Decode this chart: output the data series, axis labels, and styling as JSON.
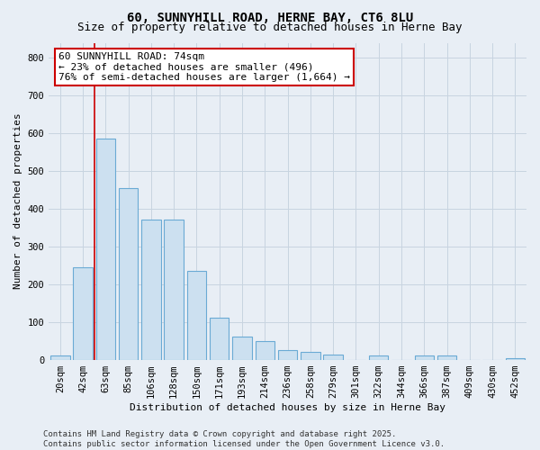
{
  "title": "60, SUNNYHILL ROAD, HERNE BAY, CT6 8LU",
  "subtitle": "Size of property relative to detached houses in Herne Bay",
  "xlabel": "Distribution of detached houses by size in Herne Bay",
  "ylabel": "Number of detached properties",
  "categories": [
    "20sqm",
    "42sqm",
    "63sqm",
    "85sqm",
    "106sqm",
    "128sqm",
    "150sqm",
    "171sqm",
    "193sqm",
    "214sqm",
    "236sqm",
    "258sqm",
    "279sqm",
    "301sqm",
    "322sqm",
    "344sqm",
    "366sqm",
    "387sqm",
    "409sqm",
    "430sqm",
    "452sqm"
  ],
  "values": [
    10,
    245,
    585,
    455,
    370,
    370,
    235,
    110,
    60,
    50,
    25,
    20,
    13,
    0,
    12,
    0,
    10,
    10,
    0,
    0,
    3
  ],
  "bar_color": "#cce0f0",
  "bar_edge_color": "#6aaad4",
  "grid_color": "#c8d4e0",
  "background_color": "#e8eef5",
  "plot_bg_color": "#e8eef5",
  "vline_x_idx": 1.5,
  "vline_color": "#cc0000",
  "annotation_text": "60 SUNNYHILL ROAD: 74sqm\n← 23% of detached houses are smaller (496)\n76% of semi-detached houses are larger (1,664) →",
  "annotation_box_facecolor": "#ffffff",
  "annotation_box_edgecolor": "#cc0000",
  "ylim": [
    0,
    840
  ],
  "yticks": [
    0,
    100,
    200,
    300,
    400,
    500,
    600,
    700,
    800
  ],
  "footer_text": "Contains HM Land Registry data © Crown copyright and database right 2025.\nContains public sector information licensed under the Open Government Licence v3.0.",
  "title_fontsize": 10,
  "subtitle_fontsize": 9,
  "xlabel_fontsize": 8,
  "ylabel_fontsize": 8,
  "tick_fontsize": 7.5,
  "footer_fontsize": 6.5,
  "annot_fontsize": 8
}
